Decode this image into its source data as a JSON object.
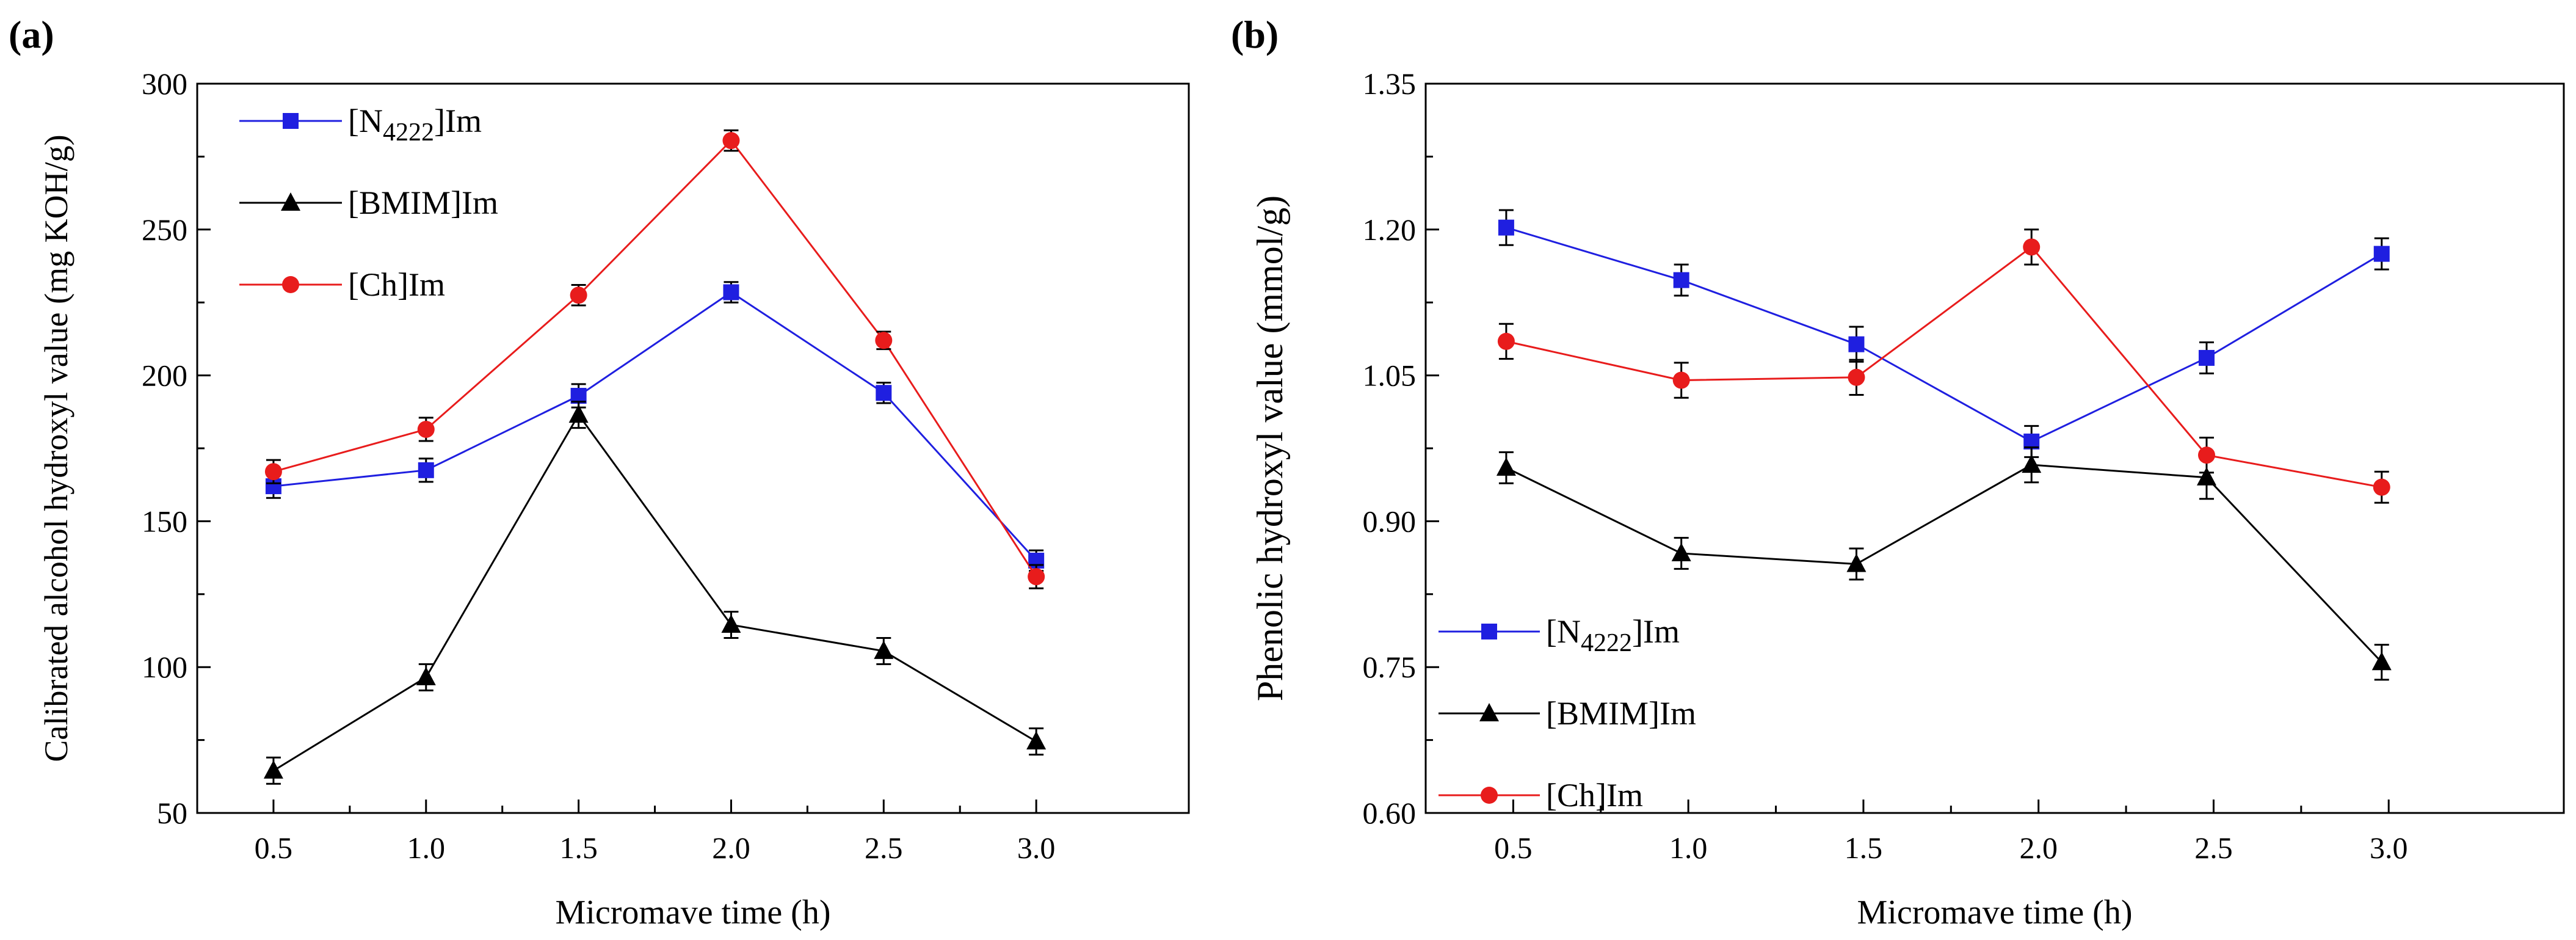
{
  "figure_panels": [
    {
      "id": "a",
      "panel_label": "(a)",
      "xlabel": "Micromave time (h)",
      "ylabel": "Calibrated alcohol hydroxyl value (mg KOH/g)",
      "legend": [
        "[N4222]Im",
        "[BMIM]Im",
        "[Ch]Im"
      ]
    },
    {
      "id": "b",
      "panel_label": "(b)",
      "xlabel": "Micromave time (h)",
      "ylabel": "Phenolic hydroxyl value (mmol/g)",
      "legend": [
        "[N4222]Im",
        "[BMIM]Im",
        "[Ch]Im"
      ]
    }
  ],
  "colors": {
    "N4222": "#1f1fe0",
    "BMIM": "#000000",
    "Ch": "#e81c1c"
  },
  "chart_data": [
    {
      "type": "line",
      "title": "(a)",
      "xlabel": "Micromave time (h)",
      "ylabel": "Calibrated alcohol hydroxyl value (mg KOH/g)",
      "xlim": [
        0.25,
        3.5
      ],
      "ylim": [
        50,
        300
      ],
      "xticks": [
        "0.5",
        "1.0",
        "1.5",
        "2.0",
        "2.5",
        "3.0"
      ],
      "yticks": [
        "50",
        "100",
        "150",
        "200",
        "250",
        "300"
      ],
      "legend_position": "top-left",
      "x": [
        0.5,
        1.0,
        1.5,
        2.0,
        2.5,
        3.0
      ],
      "series": [
        {
          "key": "N4222",
          "name": "[N4222]Im",
          "base": "[N",
          "sub": "4222",
          "tail": "]Im",
          "marker": "square",
          "values": [
            162,
            167.5,
            193,
            228.5,
            194,
            136.5
          ],
          "errors": [
            4,
            4,
            4,
            3.5,
            3.5,
            3.5
          ]
        },
        {
          "key": "BMIM",
          "name": "[BMIM]Im",
          "base": "[BMIM]Im",
          "sub": "",
          "tail": "",
          "marker": "triangle",
          "values": [
            64.5,
            96.5,
            186.5,
            114.5,
            105.5,
            74.5
          ],
          "errors": [
            4.5,
            4.5,
            4.5,
            4.5,
            4.5,
            4.5
          ]
        },
        {
          "key": "Ch",
          "name": "[Ch]Im",
          "base": "[Ch]Im",
          "sub": "",
          "tail": "",
          "marker": "circle",
          "values": [
            167,
            181.5,
            227.5,
            280.5,
            212,
            131
          ],
          "errors": [
            4,
            4,
            3.5,
            3.5,
            3,
            4
          ]
        }
      ]
    },
    {
      "type": "line",
      "title": "(b)",
      "xlabel": "Micromave time (h)",
      "ylabel": "Phenolic hydroxyl value (mmol/g)",
      "xlim": [
        0.25,
        3.5
      ],
      "ylim": [
        0.6,
        1.35
      ],
      "xticks": [
        "0.5",
        "1.0",
        "1.5",
        "2.0",
        "2.5",
        "3.0"
      ],
      "yticks": [
        "0.60",
        "0.75",
        "0.90",
        "1.05",
        "1.20",
        "1.35"
      ],
      "legend_position": "bottom-left",
      "x": [
        0.48,
        0.98,
        1.48,
        1.98,
        2.48,
        2.98
      ],
      "series": [
        {
          "key": "N4222",
          "name": "[N4222]Im",
          "base": "[N",
          "sub": "4222",
          "tail": "]Im",
          "marker": "square",
          "values": [
            1.202,
            1.148,
            1.082,
            0.982,
            1.068,
            1.175
          ],
          "errors": [
            0.018,
            0.016,
            0.018,
            0.016,
            0.016,
            0.016
          ]
        },
        {
          "key": "BMIM",
          "name": "[BMIM]Im",
          "base": "[BMIM]Im",
          "sub": "",
          "tail": "",
          "marker": "triangle",
          "values": [
            0.955,
            0.867,
            0.856,
            0.958,
            0.945,
            0.755
          ],
          "errors": [
            0.016,
            0.016,
            0.016,
            0.018,
            0.022,
            0.018
          ]
        },
        {
          "key": "Ch",
          "name": "[Ch]Im",
          "base": "[Ch]Im",
          "sub": "",
          "tail": "",
          "marker": "circle",
          "values": [
            1.085,
            1.045,
            1.048,
            1.182,
            0.968,
            0.935
          ],
          "errors": [
            0.018,
            0.018,
            0.018,
            0.018,
            0.018,
            0.016
          ]
        }
      ]
    }
  ]
}
